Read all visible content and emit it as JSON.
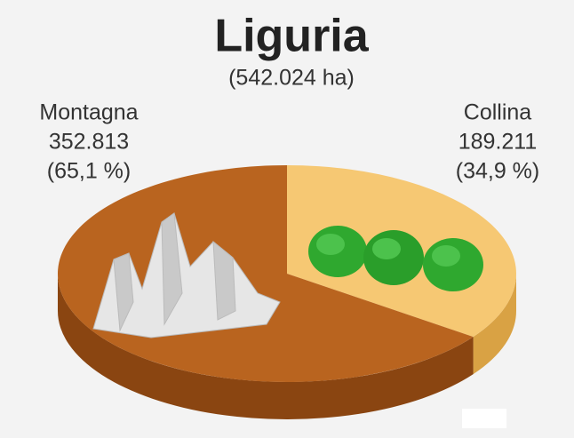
{
  "chart_data": {
    "type": "pie",
    "title": "Liguria",
    "subtitle": "(542.024 ha)",
    "categories": [
      "Collina",
      "Montagna"
    ],
    "values": [
      189211,
      352813
    ],
    "value_labels": [
      "189.211",
      "352.813"
    ],
    "percent_labels": [
      "(34,9 %)",
      "(65,1 %)"
    ],
    "colors": [
      "#f6c873",
      "#b9641f"
    ],
    "side_colors": [
      "#d9a244",
      "#8a4511"
    ]
  }
}
